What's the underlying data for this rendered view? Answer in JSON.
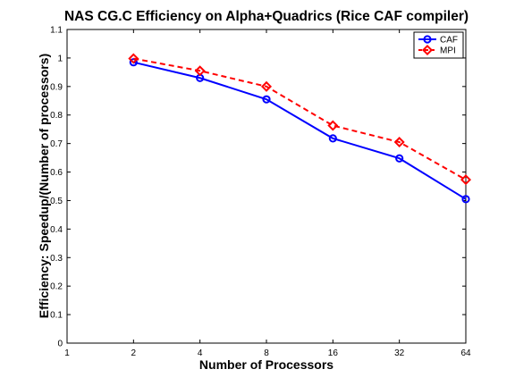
{
  "chart_data": {
    "type": "line",
    "title": "NAS CG.C Efficiency on Alpha+Quadrics (Rice CAF compiler)",
    "xlabel": "Number of Processors",
    "ylabel": "Efficiency: Speedup/(Number of processors)",
    "x_ticks": [
      "1",
      "2",
      "4",
      "8",
      "16",
      "32",
      "64"
    ],
    "y_ticks": [
      "0",
      "0.1",
      "0.2",
      "0.3",
      "0.4",
      "0.5",
      "0.6",
      "0.7",
      "0.8",
      "0.9",
      "1",
      "1.1"
    ],
    "xlim": [
      1,
      64
    ],
    "x_scale": "log2",
    "ylim": [
      0,
      1.1
    ],
    "grid": false,
    "legend_position": "top-right",
    "x": [
      2,
      4,
      8,
      16,
      32,
      64
    ],
    "series": [
      {
        "name": "CAF",
        "values": [
          0.985,
          0.93,
          0.855,
          0.718,
          0.648,
          0.505
        ],
        "color": "#0000ff",
        "line_style": "solid",
        "marker": "circle"
      },
      {
        "name": "MPI",
        "values": [
          0.998,
          0.955,
          0.9,
          0.763,
          0.705,
          0.573
        ],
        "color": "#ff0000",
        "line_style": "dashed",
        "marker": "diamond"
      }
    ]
  }
}
